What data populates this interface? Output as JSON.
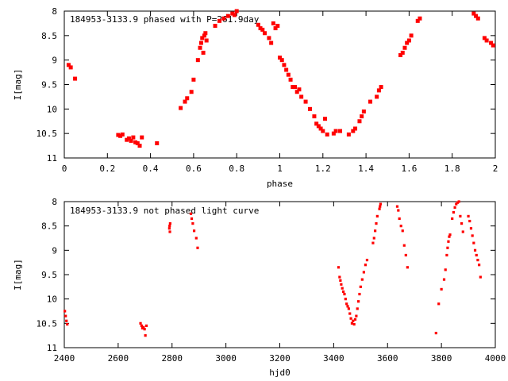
{
  "chart_data": [
    {
      "type": "scatter",
      "title": "184953-3133.9 phased with P=261.9day",
      "xlabel": "phase",
      "ylabel": "I[mag]",
      "xlim": [
        0,
        2
      ],
      "ylim": [
        11,
        8
      ],
      "y_inverted": true,
      "x_ticks": [
        "0",
        "0.2",
        "0.4",
        "0.6",
        "0.8",
        "1",
        "1.2",
        "1.4",
        "1.6",
        "1.8",
        "2"
      ],
      "y_ticks": [
        "8",
        "8.5",
        "9",
        "9.5",
        "10",
        "10.5",
        "11"
      ],
      "grid": false,
      "marker_color": "#ff0000",
      "series": [
        {
          "x": [
            0.02,
            0.03,
            0.05,
            0.25,
            0.26,
            0.27,
            0.29,
            0.3,
            0.31,
            0.32,
            0.33,
            0.34,
            0.35,
            0.36,
            0.43,
            0.54,
            0.56,
            0.57,
            0.59,
            0.6,
            0.62,
            0.63,
            0.635,
            0.64,
            0.645,
            0.65,
            0.655,
            0.66,
            0.7,
            0.72,
            0.74,
            0.76,
            0.78,
            0.79,
            0.8,
            0.9,
            0.91,
            0.92,
            0.93,
            0.95,
            0.96,
            0.97,
            0.98,
            0.99,
            1.0,
            1.01,
            1.02,
            1.03,
            1.04,
            1.05,
            1.06,
            1.07,
            1.08,
            1.09,
            1.1,
            1.12,
            1.14,
            1.16,
            1.17,
            1.18,
            1.19,
            1.2,
            1.21,
            1.22,
            1.25,
            1.26,
            1.28,
            1.32,
            1.34,
            1.35,
            1.37,
            1.38,
            1.39,
            1.42,
            1.45,
            1.46,
            1.47,
            1.56,
            1.57,
            1.58,
            1.59,
            1.6,
            1.61,
            1.64,
            1.65,
            1.9,
            1.91,
            1.92,
            1.95,
            1.96,
            1.98,
            1.99
          ],
          "y": [
            9.1,
            9.15,
            9.38,
            10.53,
            10.55,
            10.52,
            10.63,
            10.6,
            10.65,
            10.58,
            10.68,
            10.7,
            10.75,
            10.58,
            10.7,
            9.98,
            9.85,
            9.78,
            9.65,
            9.4,
            9.0,
            8.75,
            8.65,
            8.55,
            8.85,
            8.5,
            8.45,
            8.6,
            8.3,
            8.2,
            8.15,
            8.1,
            8.05,
            8.08,
            8.0,
            8.28,
            8.35,
            8.38,
            8.45,
            8.55,
            8.65,
            8.25,
            8.35,
            8.3,
            8.95,
            9.0,
            9.1,
            9.2,
            9.3,
            9.4,
            9.55,
            9.55,
            9.65,
            9.6,
            9.75,
            9.85,
            10.0,
            10.15,
            10.3,
            10.35,
            10.4,
            10.45,
            10.2,
            10.52,
            10.5,
            10.45,
            10.45,
            10.52,
            10.45,
            10.4,
            10.25,
            10.15,
            10.05,
            9.85,
            9.75,
            9.62,
            9.55,
            8.9,
            8.85,
            8.75,
            8.65,
            8.6,
            8.5,
            8.2,
            8.15,
            8.05,
            8.1,
            8.15,
            8.55,
            8.6,
            8.65,
            8.7
          ]
        }
      ]
    },
    {
      "type": "scatter",
      "title": "184953-3133.9 not phased light curve",
      "xlabel": "hjd0",
      "ylabel": "I[mag]",
      "xlim": [
        2400,
        4000
      ],
      "ylim": [
        11,
        8
      ],
      "y_inverted": true,
      "x_ticks": [
        "2400",
        "2600",
        "2800",
        "3000",
        "3200",
        "3400",
        "3600",
        "3800",
        "4000"
      ],
      "y_ticks": [
        "8",
        "8.5",
        "9",
        "9.5",
        "10",
        "10.5",
        "11"
      ],
      "grid": false,
      "marker_color": "#ff0000",
      "series": [
        {
          "x": [
            2402,
            2405,
            2408,
            2411,
            2683,
            2687,
            2690,
            2694,
            2698,
            2701,
            2705,
            2790,
            2791,
            2792,
            2793,
            2870,
            2873,
            2877,
            2882,
            2890,
            2895,
            3418,
            3422,
            3425,
            3428,
            3432,
            3436,
            3440,
            3444,
            3448,
            3452,
            3456,
            3460,
            3464,
            3468,
            3472,
            3476,
            3480,
            3484,
            3488,
            3492,
            3496,
            3500,
            3506,
            3512,
            3518,
            3524,
            3546,
            3550,
            3554,
            3558,
            3562,
            3570,
            3572,
            3574,
            3636,
            3640,
            3644,
            3650,
            3656,
            3662,
            3668,
            3674,
            3780,
            3790,
            3800,
            3810,
            3815,
            3820,
            3823,
            3826,
            3829,
            3832,
            3840,
            3845,
            3850,
            3855,
            3860,
            3865,
            3870,
            3875,
            3880,
            3900,
            3905,
            3910,
            3915,
            3920,
            3925,
            3930,
            3935,
            3940,
            3945
          ],
          "y": [
            10.25,
            10.35,
            10.45,
            10.52,
            10.5,
            10.55,
            10.6,
            10.58,
            10.62,
            10.75,
            10.55,
            8.55,
            8.5,
            8.62,
            8.45,
            8.25,
            8.35,
            8.45,
            8.6,
            8.75,
            8.95,
            9.35,
            9.55,
            9.62,
            9.7,
            9.78,
            9.85,
            9.9,
            10.0,
            10.1,
            10.15,
            10.2,
            10.3,
            10.4,
            10.5,
            10.45,
            10.52,
            10.42,
            10.35,
            10.2,
            10.05,
            9.9,
            9.75,
            9.6,
            9.45,
            9.3,
            9.2,
            8.85,
            8.75,
            8.6,
            8.45,
            8.3,
            8.15,
            8.1,
            8.05,
            8.1,
            8.18,
            8.35,
            8.5,
            8.6,
            8.9,
            9.1,
            9.35,
            10.7,
            10.1,
            9.8,
            9.6,
            9.4,
            9.1,
            8.95,
            8.82,
            8.72,
            8.68,
            8.35,
            8.22,
            8.12,
            8.05,
            8.02,
            8.0,
            8.3,
            8.45,
            8.62,
            8.3,
            8.4,
            8.55,
            8.7,
            8.85,
            9.0,
            9.1,
            9.2,
            9.3,
            9.55
          ]
        }
      ]
    }
  ]
}
